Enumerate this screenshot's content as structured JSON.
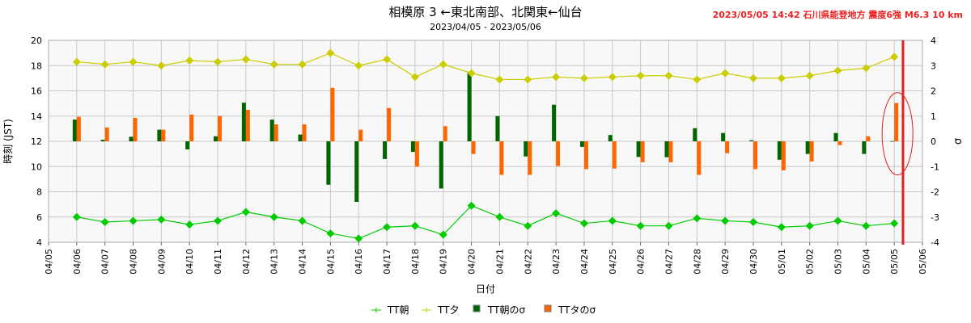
{
  "title": "相模原 3 ←東北南部、北関東←仙台",
  "subtitle": "2023/04/05 - 2023/05/06",
  "event_label": "2023/05/05 14:42 石川県能登地方 震度6強 M6.3 10 km",
  "colors": {
    "tt_morning": "#00cc00",
    "tt_evening": "#cccc00",
    "sigma_morning": "#006600",
    "sigma_evening": "#ff6600",
    "event": "#dd2222"
  },
  "chart_data": {
    "type": "bar+line",
    "xlabel": "日付",
    "ylabel": "時刻 (JST)",
    "y2label": "σ",
    "ylim": [
      4,
      20
    ],
    "y2lim": [
      -4,
      4
    ],
    "yticks": [
      "4",
      "6",
      "8",
      "10",
      "12",
      "14",
      "16",
      "18",
      "20"
    ],
    "y2ticks": [
      "-4",
      "-3",
      "-2",
      "-1",
      "0",
      "1",
      "2",
      "3",
      "4"
    ],
    "xticks": [
      "04/05",
      "04/06",
      "04/07",
      "04/08",
      "04/09",
      "04/10",
      "04/11",
      "04/12",
      "04/13",
      "04/14",
      "04/15",
      "04/16",
      "04/17",
      "04/18",
      "04/19",
      "04/20",
      "04/21",
      "04/22",
      "04/23",
      "04/24",
      "04/25",
      "04/26",
      "04/27",
      "04/28",
      "04/29",
      "04/30",
      "05/01",
      "05/02",
      "05/03",
      "05/04",
      "05/05",
      "05/06"
    ],
    "grid": true,
    "legend_position": "bottom",
    "event_day_offset": 30.31,
    "categories": [
      "04/06",
      "04/07",
      "04/08",
      "04/09",
      "04/10",
      "04/11",
      "04/12",
      "04/13",
      "04/14",
      "04/15",
      "04/16",
      "04/17",
      "04/18",
      "04/19",
      "04/20",
      "04/21",
      "04/22",
      "04/23",
      "04/24",
      "04/25",
      "04/26",
      "04/27",
      "04/28",
      "04/29",
      "04/30",
      "05/01",
      "05/02",
      "05/03",
      "05/04",
      "05/05"
    ],
    "series": [
      {
        "name": "TT朝",
        "type": "line",
        "axis": "left",
        "values": [
          6.0,
          5.6,
          5.7,
          5.8,
          5.4,
          5.7,
          6.4,
          6.0,
          5.7,
          4.7,
          4.3,
          5.2,
          5.3,
          4.6,
          6.9,
          6.0,
          5.3,
          6.3,
          5.5,
          5.7,
          5.3,
          5.3,
          5.9,
          5.7,
          5.6,
          5.2,
          5.3,
          5.7,
          5.3,
          5.5
        ]
      },
      {
        "name": "TT夕",
        "type": "line",
        "axis": "left",
        "values": [
          18.3,
          18.1,
          18.3,
          18.0,
          18.4,
          18.3,
          18.5,
          18.1,
          18.1,
          19.0,
          18.0,
          18.5,
          17.1,
          18.1,
          17.4,
          16.9,
          16.9,
          17.1,
          17.0,
          17.1,
          17.2,
          17.2,
          16.9,
          17.4,
          17.0,
          17.0,
          17.2,
          17.6,
          17.8,
          18.7
        ]
      },
      {
        "name": "TT朝のσ",
        "type": "bar",
        "axis": "right",
        "values": [
          0.86,
          0.06,
          0.18,
          0.46,
          -0.32,
          0.2,
          1.53,
          0.86,
          0.27,
          -1.72,
          -2.4,
          -0.7,
          -0.42,
          -1.87,
          2.75,
          1.0,
          -0.6,
          1.45,
          -0.22,
          0.25,
          -0.62,
          -0.63,
          0.52,
          0.33,
          0.04,
          -0.73,
          -0.5,
          0.33,
          -0.5,
          0.01
        ]
      },
      {
        "name": "TTタのσ",
        "type": "bar",
        "axis": "right",
        "values": [
          0.97,
          0.55,
          0.93,
          0.46,
          1.06,
          1.0,
          1.25,
          0.67,
          0.67,
          2.12,
          0.46,
          1.32,
          -1.0,
          0.6,
          -0.5,
          -1.33,
          -1.33,
          -0.98,
          -1.1,
          -1.08,
          -0.83,
          -0.83,
          -1.33,
          -0.47,
          -1.1,
          -1.15,
          -0.8,
          -0.15,
          0.2,
          1.52
        ]
      }
    ]
  }
}
